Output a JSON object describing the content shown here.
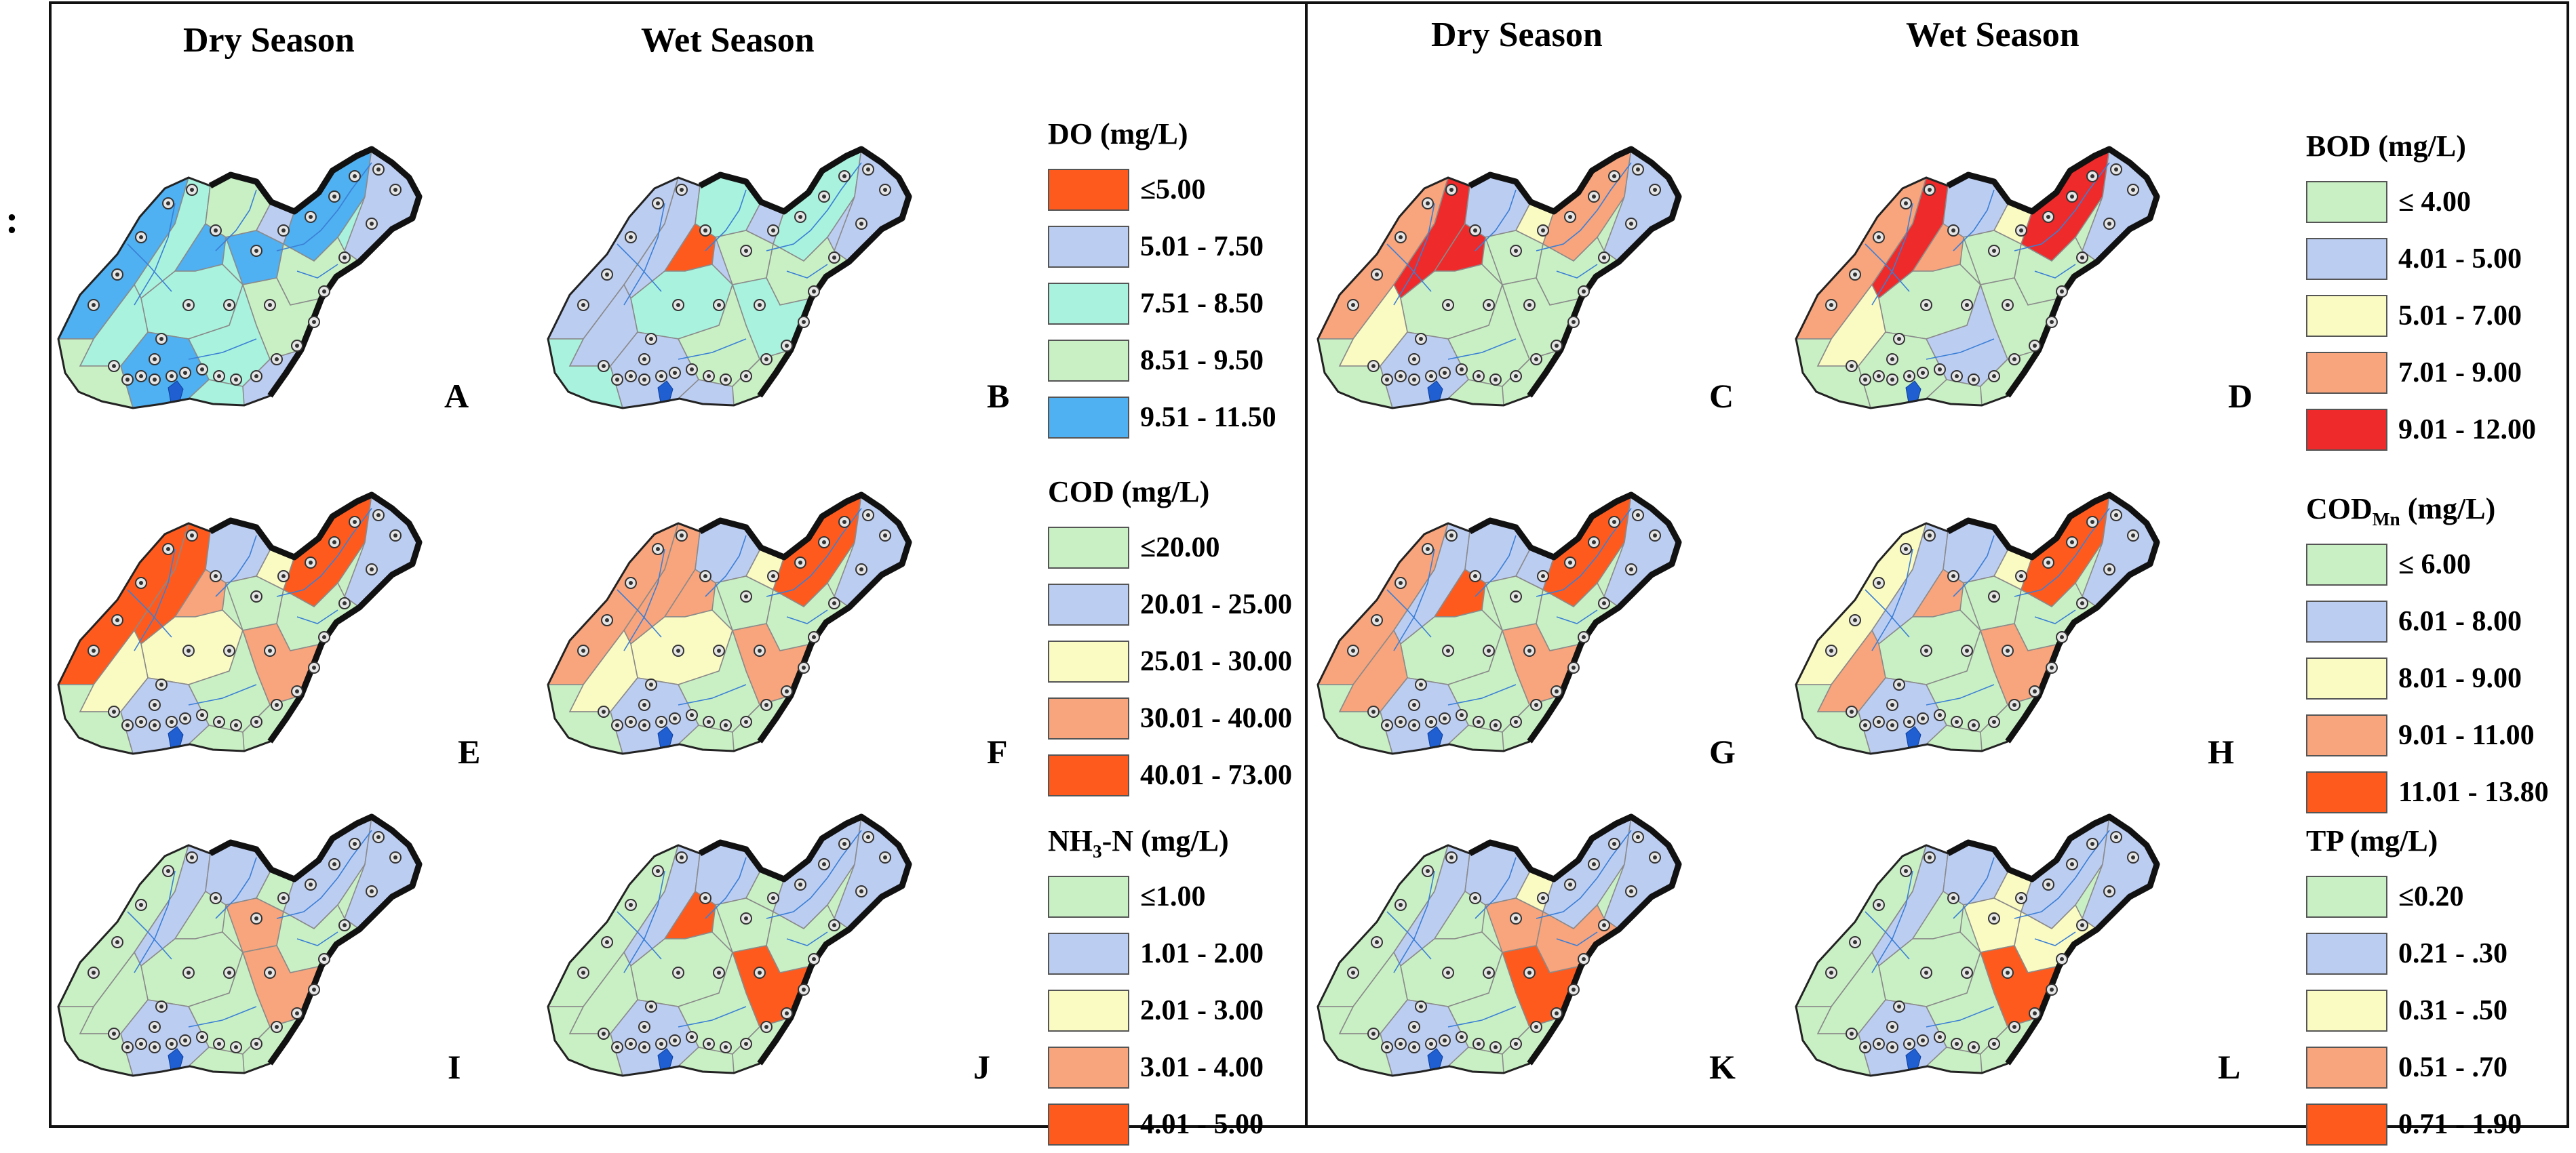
{
  "stray_mark": ":",
  "headers": {
    "left_dry": "Dry Season",
    "left_wet": "Wet Season",
    "right_dry": "Dry Season",
    "right_wet": "Wet Season"
  },
  "panel_labels": [
    "A",
    "B",
    "C",
    "D",
    "E",
    "F",
    "G",
    "H",
    "I",
    "J",
    "K",
    "L"
  ],
  "legends": [
    {
      "id": "do",
      "title": "DO (mg/L)",
      "items": [
        {
          "label": "≤5.00",
          "color": "#ff5a1e"
        },
        {
          "label": "5.01 - 7.50",
          "color": "#bccdf2"
        },
        {
          "label": "7.51 - 8.50",
          "color": "#a9f2dd"
        },
        {
          "label": "8.51 - 9.50",
          "color": "#c9f0c4"
        },
        {
          "label": "9.51 - 11.50",
          "color": "#4fb0f2"
        }
      ]
    },
    {
      "id": "bod",
      "title": "BOD (mg/L)",
      "items": [
        {
          "label": "≤ 4.00",
          "color": "#c9f0c4"
        },
        {
          "label": "4.01 - 5.00",
          "color": "#bccdf2"
        },
        {
          "label": "5.01 - 7.00",
          "color": "#fafac3"
        },
        {
          "label": "7.01 - 9.00",
          "color": "#f8a47c"
        },
        {
          "label": "9.01 - 12.00",
          "color": "#ee2a2a"
        }
      ]
    },
    {
      "id": "cod",
      "title": "COD (mg/L)",
      "items": [
        {
          "label": "≤20.00",
          "color": "#c9f0c4"
        },
        {
          "label": "20.01 - 25.00",
          "color": "#bccdf2"
        },
        {
          "label": "25.01 - 30.00",
          "color": "#fafac3"
        },
        {
          "label": "30.01 - 40.00",
          "color": "#f8a47c"
        },
        {
          "label": "40.01 - 73.00",
          "color": "#ff5a1e"
        }
      ]
    },
    {
      "id": "codmn",
      "title_main": "COD",
      "title_sub": "Mn",
      "title_rest": " (mg/L)",
      "items": [
        {
          "label": "≤ 6.00",
          "color": "#c9f0c4"
        },
        {
          "label": "6.01 - 8.00",
          "color": "#bccdf2"
        },
        {
          "label": "8.01 - 9.00",
          "color": "#fafac3"
        },
        {
          "label": "9.01 - 11.00",
          "color": "#f8a47c"
        },
        {
          "label": "11.01 - 13.80",
          "color": "#ff5a1e"
        }
      ]
    },
    {
      "id": "nh3",
      "title_main": "NH",
      "title_sub": "3",
      "title_rest": "-N (mg/L)",
      "items": [
        {
          "label": "≤1.00",
          "color": "#c9f0c4"
        },
        {
          "label": "1.01 - 2.00",
          "color": "#bccdf2"
        },
        {
          "label": "2.01 - 3.00",
          "color": "#fafac3"
        },
        {
          "label": "3.01 - 4.00",
          "color": "#f8a47c"
        },
        {
          "label": "4.01 - 5.00",
          "color": "#ff5a1e"
        }
      ]
    },
    {
      "id": "tp",
      "title": "TP (mg/L)",
      "items": [
        {
          "label": "≤0.20",
          "color": "#c9f0c4"
        },
        {
          "label": "0.21 - .30",
          "color": "#bccdf2"
        },
        {
          "label": "0.31 - .50",
          "color": "#fafac3"
        },
        {
          "label": "0.51 - .70",
          "color": "#f8a47c"
        },
        {
          "label": "0.71 - 1.90",
          "color": "#ff5a1e"
        }
      ]
    }
  ],
  "maps": [
    {
      "panel": "A",
      "base": "#a9f2dd",
      "colors": [
        "#4fb0f2",
        "#a9f2dd",
        "#c9f0c4",
        "#bccdf2",
        "#4fb0f2",
        "#4fb0f2",
        "#4fb0f2",
        "#bccdf2",
        "#a9f2dd",
        "#c9f0c4",
        "#a9f2dd",
        "#c9f0c4",
        "#a9f2dd",
        "#4fb0f2",
        "#bccdf2",
        "#c9f0c4"
      ]
    },
    {
      "panel": "B",
      "base": "#bccdf2",
      "colors": [
        "#bccdf2",
        "#bccdf2",
        "#a9f2dd",
        "#bccdf2",
        "#ff5a1e",
        "#a9f2dd",
        "#c9f0c4",
        "#bccdf2",
        "#a9f2dd",
        "#c9f0c4",
        "#bccdf2",
        "#a9f2dd",
        "#c9f0c4",
        "#bccdf2",
        "#c9f0c4",
        "#a9f2dd"
      ]
    },
    {
      "panel": "C",
      "base": "#c9f0c4",
      "colors": [
        "#f8a47c",
        "#ee2a2a",
        "#bccdf2",
        "#fafac3",
        "#ee2a2a",
        "#f8a47c",
        "#c9f0c4",
        "#bccdf2",
        "#c9f0c4",
        "#c9f0c4",
        "#fafac3",
        "#c9f0c4",
        "#c9f0c4",
        "#bccdf2",
        "#c9f0c4",
        "#c9f0c4"
      ]
    },
    {
      "panel": "D",
      "base": "#c9f0c4",
      "colors": [
        "#f8a47c",
        "#ee2a2a",
        "#bccdf2",
        "#fafac3",
        "#f8a47c",
        "#ee2a2a",
        "#c9f0c4",
        "#bccdf2",
        "#c9f0c4",
        "#c9f0c4",
        "#fafac3",
        "#c9f0c4",
        "#bccdf2",
        "#c9f0c4",
        "#c9f0c4",
        "#c9f0c4"
      ]
    },
    {
      "panel": "E",
      "base": "#c9f0c4",
      "colors": [
        "#ff5a1e",
        "#ff5a1e",
        "#bccdf2",
        "#fafac3",
        "#f8a47c",
        "#ff5a1e",
        "#c9f0c4",
        "#bccdf2",
        "#fafac3",
        "#c9f0c4",
        "#fafac3",
        "#f8a47c",
        "#c9f0c4",
        "#bccdf2",
        "#c9f0c4",
        "#c9f0c4"
      ]
    },
    {
      "panel": "F",
      "base": "#c9f0c4",
      "colors": [
        "#f8a47c",
        "#f8a47c",
        "#bccdf2",
        "#fafac3",
        "#f8a47c",
        "#ff5a1e",
        "#c9f0c4",
        "#bccdf2",
        "#fafac3",
        "#c9f0c4",
        "#fafac3",
        "#f8a47c",
        "#c9f0c4",
        "#bccdf2",
        "#c9f0c4",
        "#c9f0c4"
      ]
    },
    {
      "panel": "G",
      "base": "#c9f0c4",
      "colors": [
        "#f8a47c",
        "#bccdf2",
        "#bccdf2",
        "#bccdf2",
        "#ff5a1e",
        "#ff5a1e",
        "#c9f0c4",
        "#bccdf2",
        "#c9f0c4",
        "#c9f0c4",
        "#f8a47c",
        "#f8a47c",
        "#c9f0c4",
        "#bccdf2",
        "#c9f0c4",
        "#c9f0c4"
      ]
    },
    {
      "panel": "H",
      "base": "#c9f0c4",
      "colors": [
        "#fafac3",
        "#bccdf2",
        "#bccdf2",
        "#fafac3",
        "#f8a47c",
        "#ff5a1e",
        "#c9f0c4",
        "#bccdf2",
        "#c9f0c4",
        "#c9f0c4",
        "#f8a47c",
        "#f8a47c",
        "#c9f0c4",
        "#bccdf2",
        "#c9f0c4",
        "#c9f0c4"
      ]
    },
    {
      "panel": "I",
      "base": "#c9f0c4",
      "colors": [
        "#c9f0c4",
        "#bccdf2",
        "#bccdf2",
        "#c9f0c4",
        "#c9f0c4",
        "#bccdf2",
        "#f8a47c",
        "#bccdf2",
        "#c9f0c4",
        "#c9f0c4",
        "#c9f0c4",
        "#f8a47c",
        "#c9f0c4",
        "#bccdf2",
        "#c9f0c4",
        "#c9f0c4"
      ]
    },
    {
      "panel": "J",
      "base": "#c9f0c4",
      "colors": [
        "#c9f0c4",
        "#bccdf2",
        "#bccdf2",
        "#c9f0c4",
        "#ff5a1e",
        "#bccdf2",
        "#c9f0c4",
        "#bccdf2",
        "#c9f0c4",
        "#c9f0c4",
        "#c9f0c4",
        "#ff5a1e",
        "#c9f0c4",
        "#bccdf2",
        "#c9f0c4",
        "#c9f0c4"
      ]
    },
    {
      "panel": "K",
      "base": "#c9f0c4",
      "colors": [
        "#c9f0c4",
        "#bccdf2",
        "#bccdf2",
        "#fafac3",
        "#c9f0c4",
        "#bccdf2",
        "#f8a47c",
        "#bccdf2",
        "#c9f0c4",
        "#f8a47c",
        "#c9f0c4",
        "#ff5a1e",
        "#c9f0c4",
        "#bccdf2",
        "#c9f0c4",
        "#c9f0c4"
      ]
    },
    {
      "panel": "L",
      "base": "#c9f0c4",
      "colors": [
        "#c9f0c4",
        "#bccdf2",
        "#bccdf2",
        "#fafac3",
        "#c9f0c4",
        "#bccdf2",
        "#fafac3",
        "#bccdf2",
        "#c9f0c4",
        "#fafac3",
        "#c9f0c4",
        "#ff5a1e",
        "#c9f0c4",
        "#bccdf2",
        "#c9f0c4",
        "#c9f0c4"
      ]
    }
  ]
}
